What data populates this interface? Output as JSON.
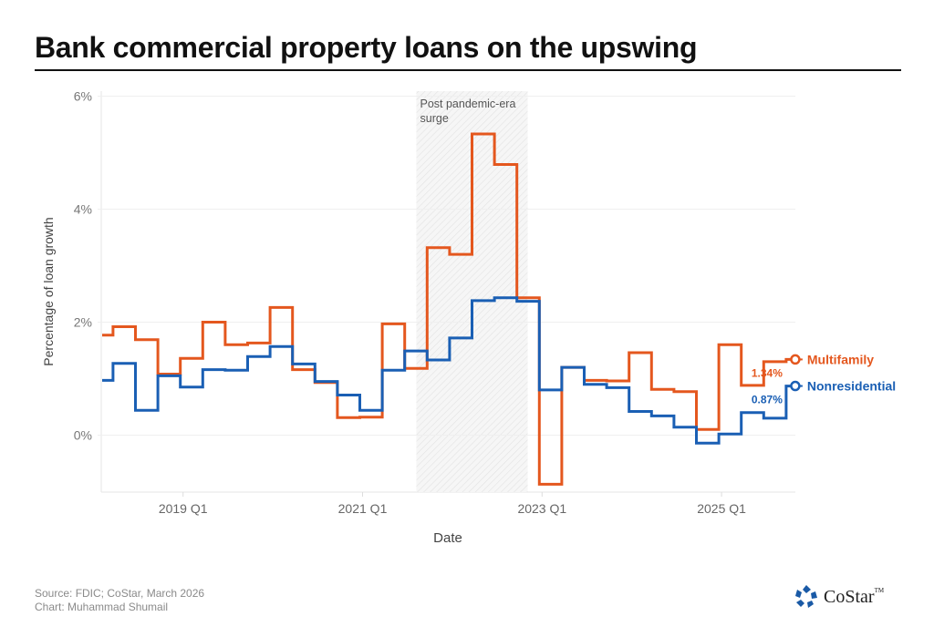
{
  "header": {
    "title": "Bank commercial property loans on the upswing"
  },
  "footer": {
    "source": "Source: FDIC; CoStar, March 2026",
    "credit": "Chart: Muhammad Shumail",
    "logo_text": "CoStar",
    "logo_tm": "TM",
    "logo_color": "#1a5aa6"
  },
  "chart_data": {
    "type": "line",
    "step": "mid",
    "title": "Bank commercial property loans on the upswing",
    "xlabel": "Date",
    "ylabel": "Percentage of loan growth",
    "ylim": [
      -1.0,
      6.0
    ],
    "yticks": [
      0,
      2,
      4,
      6
    ],
    "ytick_labels": [
      "0%",
      "2%",
      "4%",
      "6%"
    ],
    "xtick_labels": [
      "2019 Q1",
      "2021 Q1",
      "2023 Q1",
      "2025 Q1"
    ],
    "grid": "horizontal",
    "annotation": {
      "text_line1": "Post pandemic-era",
      "text_line2": "surge",
      "x_start": "2021 Q3",
      "x_end": "2022 Q4",
      "style": "hatched shaded band"
    },
    "x": [
      "2018 Q1",
      "2018 Q2",
      "2018 Q3",
      "2018 Q4",
      "2019 Q1",
      "2019 Q2",
      "2019 Q3",
      "2019 Q4",
      "2020 Q1",
      "2020 Q2",
      "2020 Q3",
      "2020 Q4",
      "2021 Q1",
      "2021 Q2",
      "2021 Q3",
      "2021 Q4",
      "2022 Q1",
      "2022 Q2",
      "2022 Q3",
      "2022 Q4",
      "2023 Q1",
      "2023 Q2",
      "2023 Q3",
      "2023 Q4",
      "2024 Q1",
      "2024 Q2",
      "2024 Q3",
      "2024 Q4",
      "2025 Q1",
      "2025 Q2",
      "2025 Q3",
      "2025 Q4"
    ],
    "series": [
      {
        "name": "Multifamily",
        "color": "#e4571e",
        "end_label": "1.34%",
        "values": [
          1.77,
          1.92,
          1.69,
          1.08,
          1.36,
          2.0,
          1.6,
          1.63,
          2.26,
          1.16,
          0.93,
          0.31,
          0.32,
          1.97,
          1.18,
          3.32,
          3.2,
          5.33,
          4.79,
          2.43,
          -0.87,
          1.2,
          0.97,
          0.96,
          1.46,
          0.81,
          0.77,
          0.1,
          1.6,
          0.88,
          1.3,
          1.34
        ]
      },
      {
        "name": "Nonresidential",
        "color": "#1a5fb4",
        "end_label": "0.87%",
        "values": [
          0.97,
          1.27,
          0.44,
          1.05,
          0.85,
          1.16,
          1.15,
          1.39,
          1.57,
          1.26,
          0.95,
          0.71,
          0.44,
          1.15,
          1.49,
          1.33,
          1.72,
          2.38,
          2.43,
          2.37,
          0.8,
          1.2,
          0.9,
          0.84,
          0.42,
          0.34,
          0.14,
          -0.14,
          0.02,
          0.4,
          0.3,
          0.87
        ]
      }
    ]
  }
}
